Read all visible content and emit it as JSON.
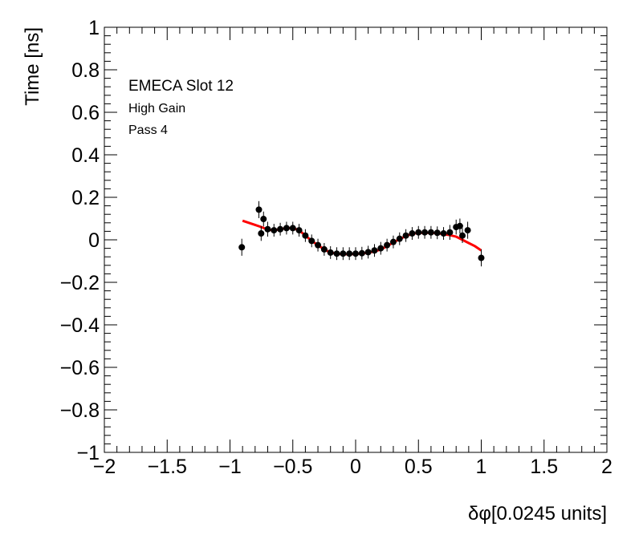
{
  "chart_data": {
    "type": "scatter",
    "xlabel": "δφ[0.0245 units]",
    "ylabel": "Time [ns]",
    "xlim": [
      -2,
      2
    ],
    "ylim": [
      -1,
      1
    ],
    "x_ticks": [
      -2,
      -1.5,
      -1,
      -0.5,
      0,
      0.5,
      1,
      1.5,
      2
    ],
    "x_tick_labels": [
      "−2",
      "−1.5",
      "−1",
      "−0.5",
      "0",
      "0.5",
      "1",
      "1.5",
      "2"
    ],
    "y_ticks": [
      -1,
      -0.8,
      -0.6,
      -0.4,
      -0.2,
      0,
      0.2,
      0.4,
      0.6,
      0.8,
      1
    ],
    "y_tick_labels": [
      "−1",
      "−0.8",
      "−0.6",
      "−0.4",
      "−0.2",
      "0",
      "0.2",
      "0.4",
      "0.6",
      "0.8",
      "1"
    ],
    "annotations": [
      "EMECA Slot 12",
      "High Gain",
      "Pass 4"
    ],
    "grid": false,
    "colors": {
      "points": "#000000",
      "fit": "#ff0000"
    },
    "series": [
      {
        "type": "scatter-errorbars",
        "x": [
          -0.906,
          -0.77,
          -0.752,
          -0.733,
          -0.7,
          -0.65,
          -0.6,
          -0.55,
          -0.5,
          -0.45,
          -0.4,
          -0.35,
          -0.3,
          -0.25,
          -0.2,
          -0.15,
          -0.1,
          -0.05,
          0.0,
          0.05,
          0.1,
          0.15,
          0.2,
          0.25,
          0.3,
          0.35,
          0.4,
          0.45,
          0.5,
          0.55,
          0.6,
          0.65,
          0.7,
          0.75,
          0.8,
          0.83,
          0.85,
          0.892,
          1.0
        ],
        "y": [
          -0.035,
          0.142,
          0.03,
          0.098,
          0.05,
          0.045,
          0.05,
          0.055,
          0.055,
          0.045,
          0.02,
          -0.005,
          -0.025,
          -0.045,
          -0.06,
          -0.065,
          -0.065,
          -0.065,
          -0.065,
          -0.063,
          -0.058,
          -0.05,
          -0.04,
          -0.025,
          -0.01,
          0.005,
          0.02,
          0.03,
          0.035,
          0.035,
          0.035,
          0.033,
          0.03,
          0.035,
          0.06,
          0.065,
          0.02,
          0.045,
          -0.085
        ],
        "yerr": [
          0.04,
          0.04,
          0.035,
          0.035,
          0.035,
          0.03,
          0.03,
          0.03,
          0.03,
          0.03,
          0.03,
          0.03,
          0.03,
          0.03,
          0.03,
          0.03,
          0.03,
          0.03,
          0.03,
          0.03,
          0.03,
          0.03,
          0.03,
          0.03,
          0.03,
          0.03,
          0.03,
          0.03,
          0.03,
          0.03,
          0.03,
          0.03,
          0.03,
          0.035,
          0.035,
          0.035,
          0.035,
          0.04,
          0.04
        ]
      },
      {
        "type": "fit-line",
        "x": [
          -0.9,
          -0.85,
          -0.8,
          -0.75,
          -0.7,
          -0.65,
          -0.6,
          -0.55,
          -0.5,
          -0.45,
          -0.4,
          -0.35,
          -0.3,
          -0.25,
          -0.2,
          -0.15,
          -0.1,
          -0.05,
          0.0,
          0.05,
          0.1,
          0.15,
          0.2,
          0.25,
          0.3,
          0.35,
          0.4,
          0.45,
          0.5,
          0.55,
          0.6,
          0.65,
          0.7,
          0.75,
          0.8,
          0.85,
          0.9,
          0.95,
          1.0
        ],
        "y": [
          0.09,
          0.08,
          0.07,
          0.06,
          0.048,
          0.045,
          0.05,
          0.055,
          0.055,
          0.045,
          0.02,
          -0.005,
          -0.025,
          -0.045,
          -0.06,
          -0.065,
          -0.068,
          -0.068,
          -0.066,
          -0.064,
          -0.06,
          -0.055,
          -0.045,
          -0.03,
          -0.012,
          0.003,
          0.018,
          0.028,
          0.033,
          0.033,
          0.033,
          0.031,
          0.027,
          0.022,
          0.015,
          0.0,
          -0.015,
          -0.03,
          -0.05
        ]
      }
    ]
  }
}
